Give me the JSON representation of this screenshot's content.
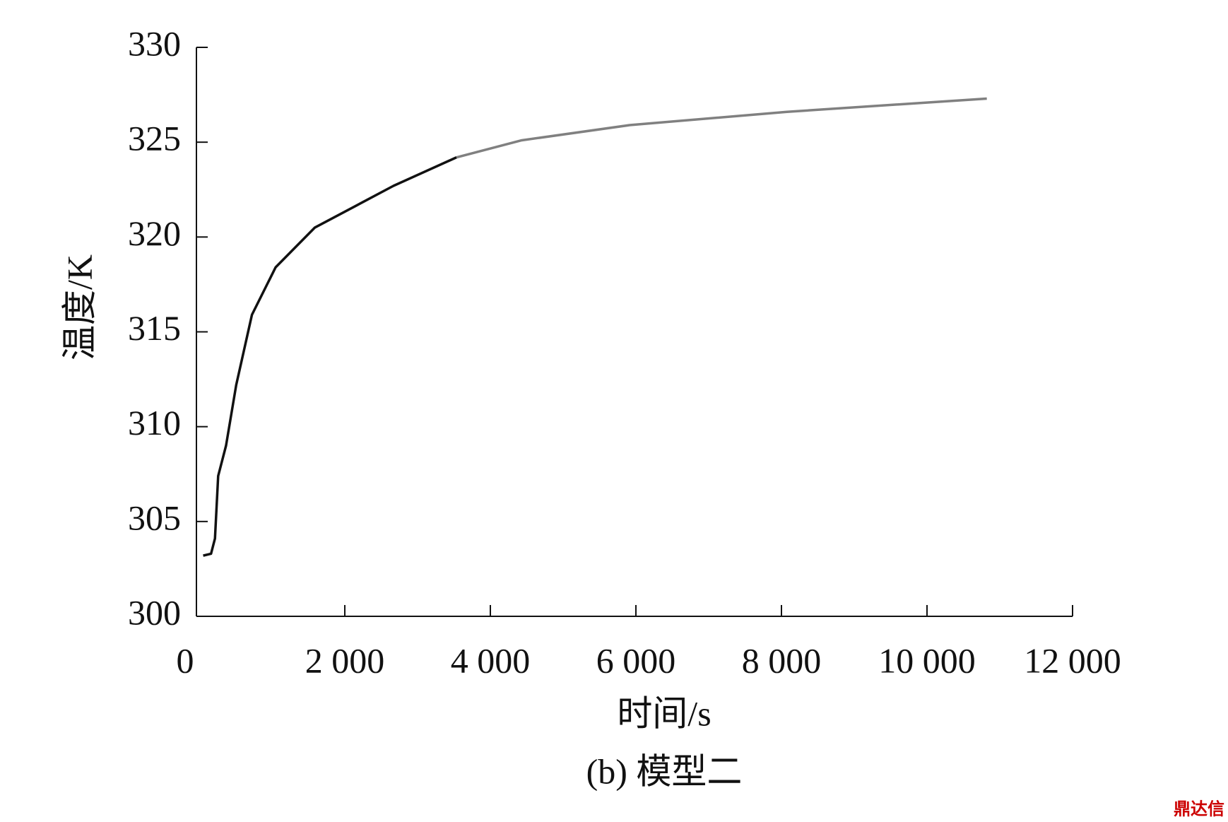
{
  "chart_data": {
    "type": "line",
    "xlabel": "时间/s",
    "ylabel": "温度/K",
    "caption": "(b) 模型二",
    "watermark": "鼎达信",
    "series": [
      {
        "color": "#111111",
        "x": [
          54,
          162,
          216,
          260,
          368,
          508,
          724,
          1049,
          1589,
          2130,
          2670,
          3535
        ],
        "values": [
          303.2,
          303.3,
          304.1,
          307.4,
          309.0,
          312.2,
          315.9,
          318.4,
          320.5,
          321.6,
          322.7,
          324.2
        ]
      },
      {
        "color": "#808080",
        "x": [
          3535,
          4432,
          5914,
          8076,
          10822
        ],
        "values": [
          324.2,
          325.1,
          325.9,
          326.6,
          327.3
        ]
      }
    ],
    "xlim": [
      0,
      12000
    ],
    "xticks": [
      0,
      {
        "value": 2000,
        "label": "2 000"
      },
      {
        "value": 4000,
        "label": "4 000"
      },
      {
        "value": 6000,
        "label": "6 000"
      },
      {
        "value": 8000,
        "label": "8 000"
      },
      {
        "value": 10000,
        "label": "10 000"
      },
      {
        "value": 12000,
        "label": "12 000"
      }
    ],
    "ylim": [
      300,
      330
    ],
    "yticks": [
      300,
      305,
      310,
      315,
      320,
      325,
      330
    ]
  }
}
